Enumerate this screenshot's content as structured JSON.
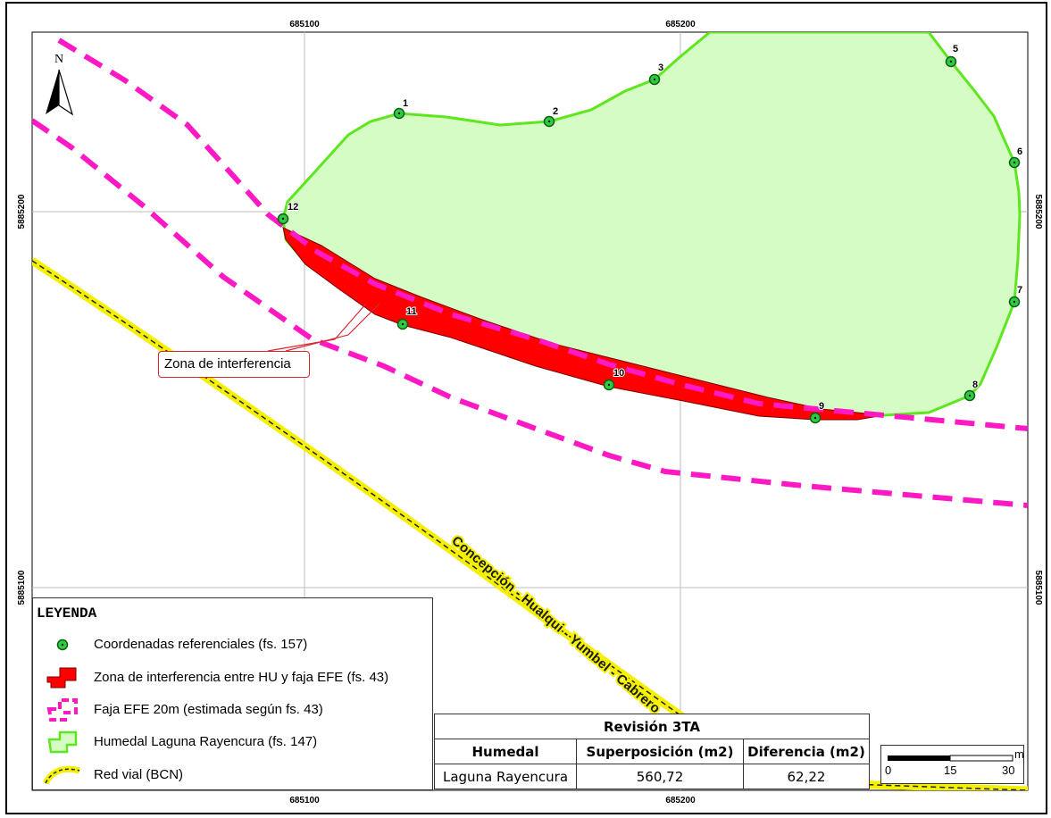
{
  "grid": {
    "x_top": [
      "685100",
      "685200"
    ],
    "x_bottom": [
      "685100",
      "685200"
    ],
    "y_left": [
      "5885200",
      "5885100"
    ],
    "y_right": [
      "5885200",
      "5885100"
    ]
  },
  "north_arrow": {
    "label": "N",
    "icon": "north-arrow-icon"
  },
  "reference_points": [
    "1",
    "2",
    "3",
    "5",
    "6",
    "7",
    "8",
    "9",
    "10",
    "11",
    "12"
  ],
  "callout": {
    "text": "Zona de interferencia"
  },
  "road_label": "Concepción - Hualqui - Yumbel - Cabrero",
  "legend": {
    "title": "LEYENDA",
    "items": [
      {
        "label": "Coordenadas referenciales (fs. 157)",
        "icon": "green-point-icon",
        "color": "#2ecc40"
      },
      {
        "label": "Zona de interferencia entre HU y faja EFE (fs. 43)",
        "icon": "red-polygon-icon",
        "color": "#ff0000"
      },
      {
        "label": "Faja EFE 20m (estimada según fs. 43)",
        "icon": "magenta-dashed-polygon-icon",
        "color": "#ff19c5"
      },
      {
        "label": "Humedal Laguna Rayencura (fs. 147)",
        "icon": "green-polygon-icon",
        "color": "#d4fcc4"
      },
      {
        "label": "Red vial (BCN)",
        "icon": "road-line-icon",
        "color": "#f4f000"
      }
    ]
  },
  "table": {
    "title": "Revisión 3TA",
    "headers": [
      "Humedal",
      "Superposición (m2)",
      "Diferencia (m2)"
    ],
    "rows": [
      [
        "Laguna Rayencura",
        "560,72",
        "62,22"
      ]
    ]
  },
  "scale_bar": {
    "unit": "m",
    "ticks": [
      "0",
      "15",
      "30"
    ]
  },
  "colors": {
    "wetland_fill": "#d4fcc4",
    "wetland_outline": "#5ee61e",
    "interference": "#ff0000",
    "efe_strip": "#ff19c5",
    "road": "#f4f000",
    "point": "#2ecc40"
  }
}
